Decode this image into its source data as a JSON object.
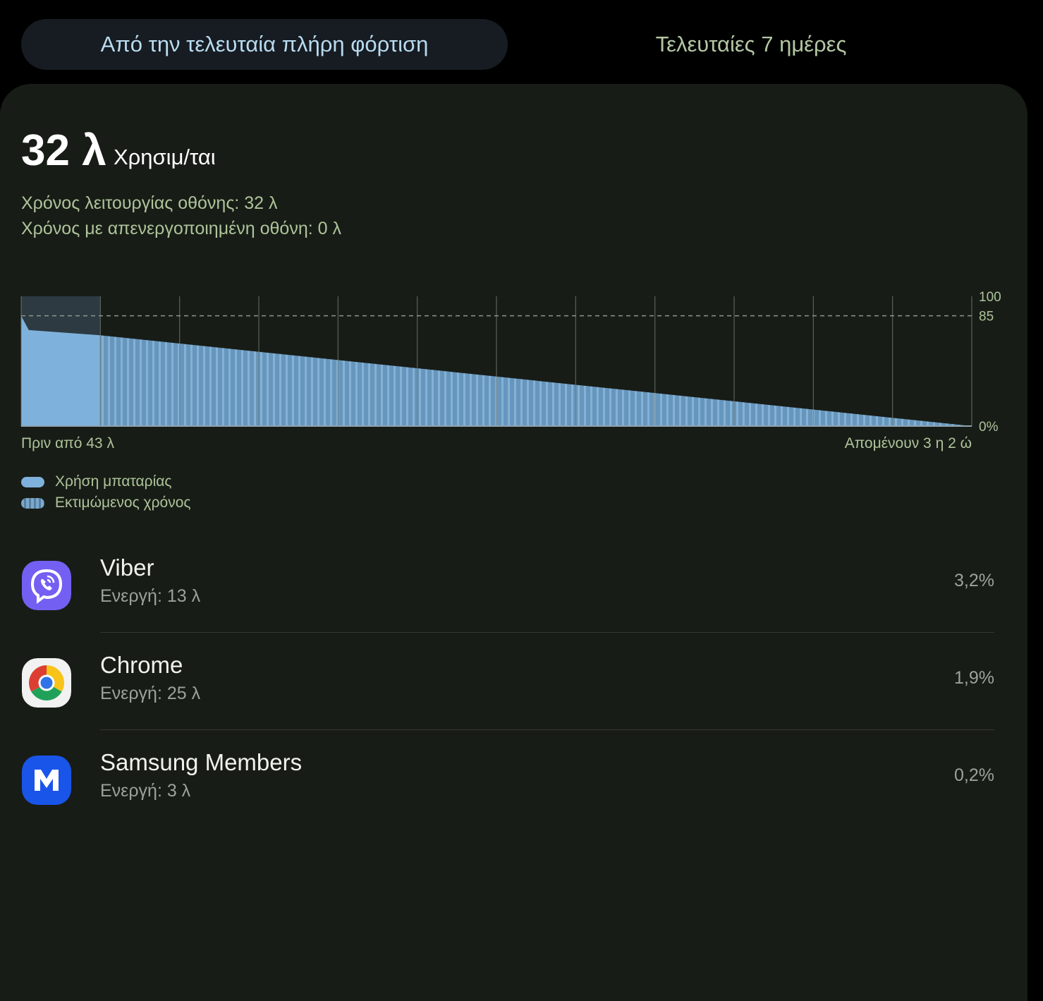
{
  "tabs": {
    "active": "Από την τελευταία πλήρη φόρτιση",
    "inactive": "Τελευταίες 7 ημέρες"
  },
  "summary": {
    "used_value": "32 λ",
    "used_label": "Χρησιμ/ται",
    "screen_on": "Χρόνος λειτουργίας οθόνης: 32 λ",
    "screen_off": "Χρόνος με απενεργοποιημένη οθόνη: 0 λ"
  },
  "chart_data": {
    "type": "area",
    "x_start_label": "Πριν από 43 λ",
    "x_end_label": "Απομένουν 3 η 2 ώ",
    "y_ticks": [
      "100",
      "85",
      "0%"
    ],
    "ylim": [
      0,
      100
    ],
    "reference_line": 85,
    "series": [
      {
        "name": "Χρήση μπαταρίας",
        "x_fraction": [
          0,
          0.008,
          0.083
        ],
        "y": [
          85,
          74,
          70
        ],
        "color": "#7eb2dc"
      },
      {
        "name": "Εκτιμώμενος χρόνος",
        "x_fraction": [
          0.083,
          1
        ],
        "y": [
          70,
          0
        ],
        "color": "#6a9cc6"
      }
    ],
    "highlight_fraction": [
      0,
      0.083
    ],
    "grid_divisions": 12
  },
  "legend": {
    "usage": "Χρήση μπαταρίας",
    "estimated": "Εκτιμώμενος χρόνος"
  },
  "apps": [
    {
      "name": "Viber",
      "sub": "Ενεργή: 13 λ",
      "pct": "3,2%",
      "icon": "viber-icon"
    },
    {
      "name": "Chrome",
      "sub": "Ενεργή: 25 λ",
      "pct": "1,9%",
      "icon": "chrome-icon"
    },
    {
      "name": "Samsung Members",
      "sub": "Ενεργή: 3 λ",
      "pct": "0,2%",
      "icon": "samsung-members-icon"
    }
  ],
  "colors": {
    "accent_text": "#aec49b",
    "tab_active_text": "#b9dbf0",
    "card_bg": "#181c16",
    "bar_blue": "#7eb2dc"
  }
}
